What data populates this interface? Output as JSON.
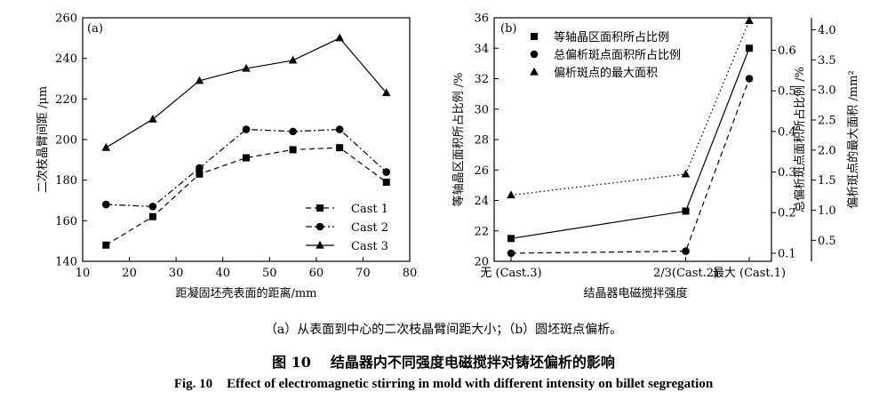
{
  "chart_data": [
    {
      "id": "a",
      "type": "line",
      "panel_label": "(a)",
      "xlabel": "距凝固坯壳表面的距离/mm",
      "ylabel": "二次枝晶臂间距 /μm",
      "xlim": [
        10,
        80
      ],
      "ylim": [
        140,
        260
      ],
      "xticks": [
        "10",
        "20",
        "30",
        "40",
        "50",
        "60",
        "70",
        "80"
      ],
      "yticks": [
        "140",
        "160",
        "180",
        "200",
        "220",
        "240",
        "260"
      ],
      "x": [
        15,
        25,
        35,
        45,
        55,
        65,
        75
      ],
      "legend_position": "bottom-right",
      "series": [
        {
          "name": "Cast 1",
          "marker": "square",
          "line": "dashed",
          "values": [
            148,
            162,
            183,
            191,
            195,
            196,
            179
          ]
        },
        {
          "name": "Cast 2",
          "marker": "circle",
          "line": "dashdot",
          "values": [
            168,
            167,
            186,
            205,
            204,
            205,
            184
          ]
        },
        {
          "name": "Cast 3",
          "marker": "triangle",
          "line": "solid",
          "values": [
            196,
            210,
            229,
            235,
            239,
            250,
            223
          ]
        }
      ]
    },
    {
      "id": "b",
      "type": "line",
      "panel_label": "(b)",
      "xlabel": "结晶器电磁搅拌强度",
      "categories": [
        "无 (Cast.3)",
        "2/3(Cast.2)",
        "最大 (Cast.1)"
      ],
      "category_positions": [
        0,
        2.2,
        3
      ],
      "ylabel_left": "等轴晶区面积所占比例 /%",
      "ylabel_right1": "总偏析斑点面积所占比例 /%",
      "ylabel_right2": "偏析斑点的最大面积 /mm²",
      "ylim_left": [
        20,
        36
      ],
      "yticks_left": [
        "20",
        "22",
        "24",
        "26",
        "28",
        "30",
        "32",
        "34",
        "36"
      ],
      "ylim_right1": [
        0.08,
        0.68
      ],
      "yticks_right1": [
        "0.1",
        "0.2",
        "0.3",
        "0.4",
        "0.5",
        "0.6"
      ],
      "ylim_right2": [
        0.15,
        4.2
      ],
      "yticks_right2": [
        "0.5",
        "1.0",
        "1.5",
        "2.0",
        "2.5",
        "3.0",
        "3.5",
        "4.0"
      ],
      "legend_position": "top-left",
      "series": [
        {
          "name": "等轴晶区面积所占比例",
          "marker": "square",
          "line": "solid",
          "axis": "left",
          "values": [
            21.5,
            23.3,
            34.0
          ]
        },
        {
          "name": "总偏析斑点面积所占比例",
          "marker": "circle",
          "line": "dashed",
          "axis": "right1",
          "values": [
            0.1,
            0.105,
            0.53
          ]
        },
        {
          "name": "偏析斑点的最大面积",
          "marker": "triangle",
          "line": "dotted",
          "axis": "right2",
          "values": [
            1.25,
            1.6,
            4.15
          ]
        }
      ]
    }
  ],
  "captions": {
    "subcaption": "（a）从表面到中心的二次枝晶臂间距大小；（b）圆坯斑点偏析。",
    "cn_fig_no": "图 10",
    "cn_title": "结晶器内不同强度电磁搅拌对铸坯偏析的影响",
    "en_fig_no": "Fig. 10",
    "en_title": "Effect of electromagnetic stirring in mold with different intensity on billet segregation"
  }
}
